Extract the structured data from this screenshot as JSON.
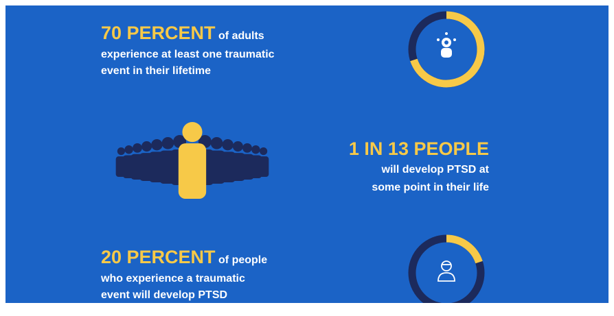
{
  "stats": [
    {
      "highlight": "70 PERCENT",
      "rest": "of adults",
      "lines": [
        "experience at least one traumatic",
        "event in their lifetime"
      ],
      "percent": 70
    },
    {
      "highlight": "1 IN 13 PEOPLE",
      "lines": [
        "will develop PTSD at",
        "some point in their life"
      ]
    },
    {
      "highlight": "20 PERCENT",
      "rest": "of people",
      "lines": [
        "who experience a traumatic",
        "event will develop PTSD"
      ],
      "percent": 20
    }
  ]
}
